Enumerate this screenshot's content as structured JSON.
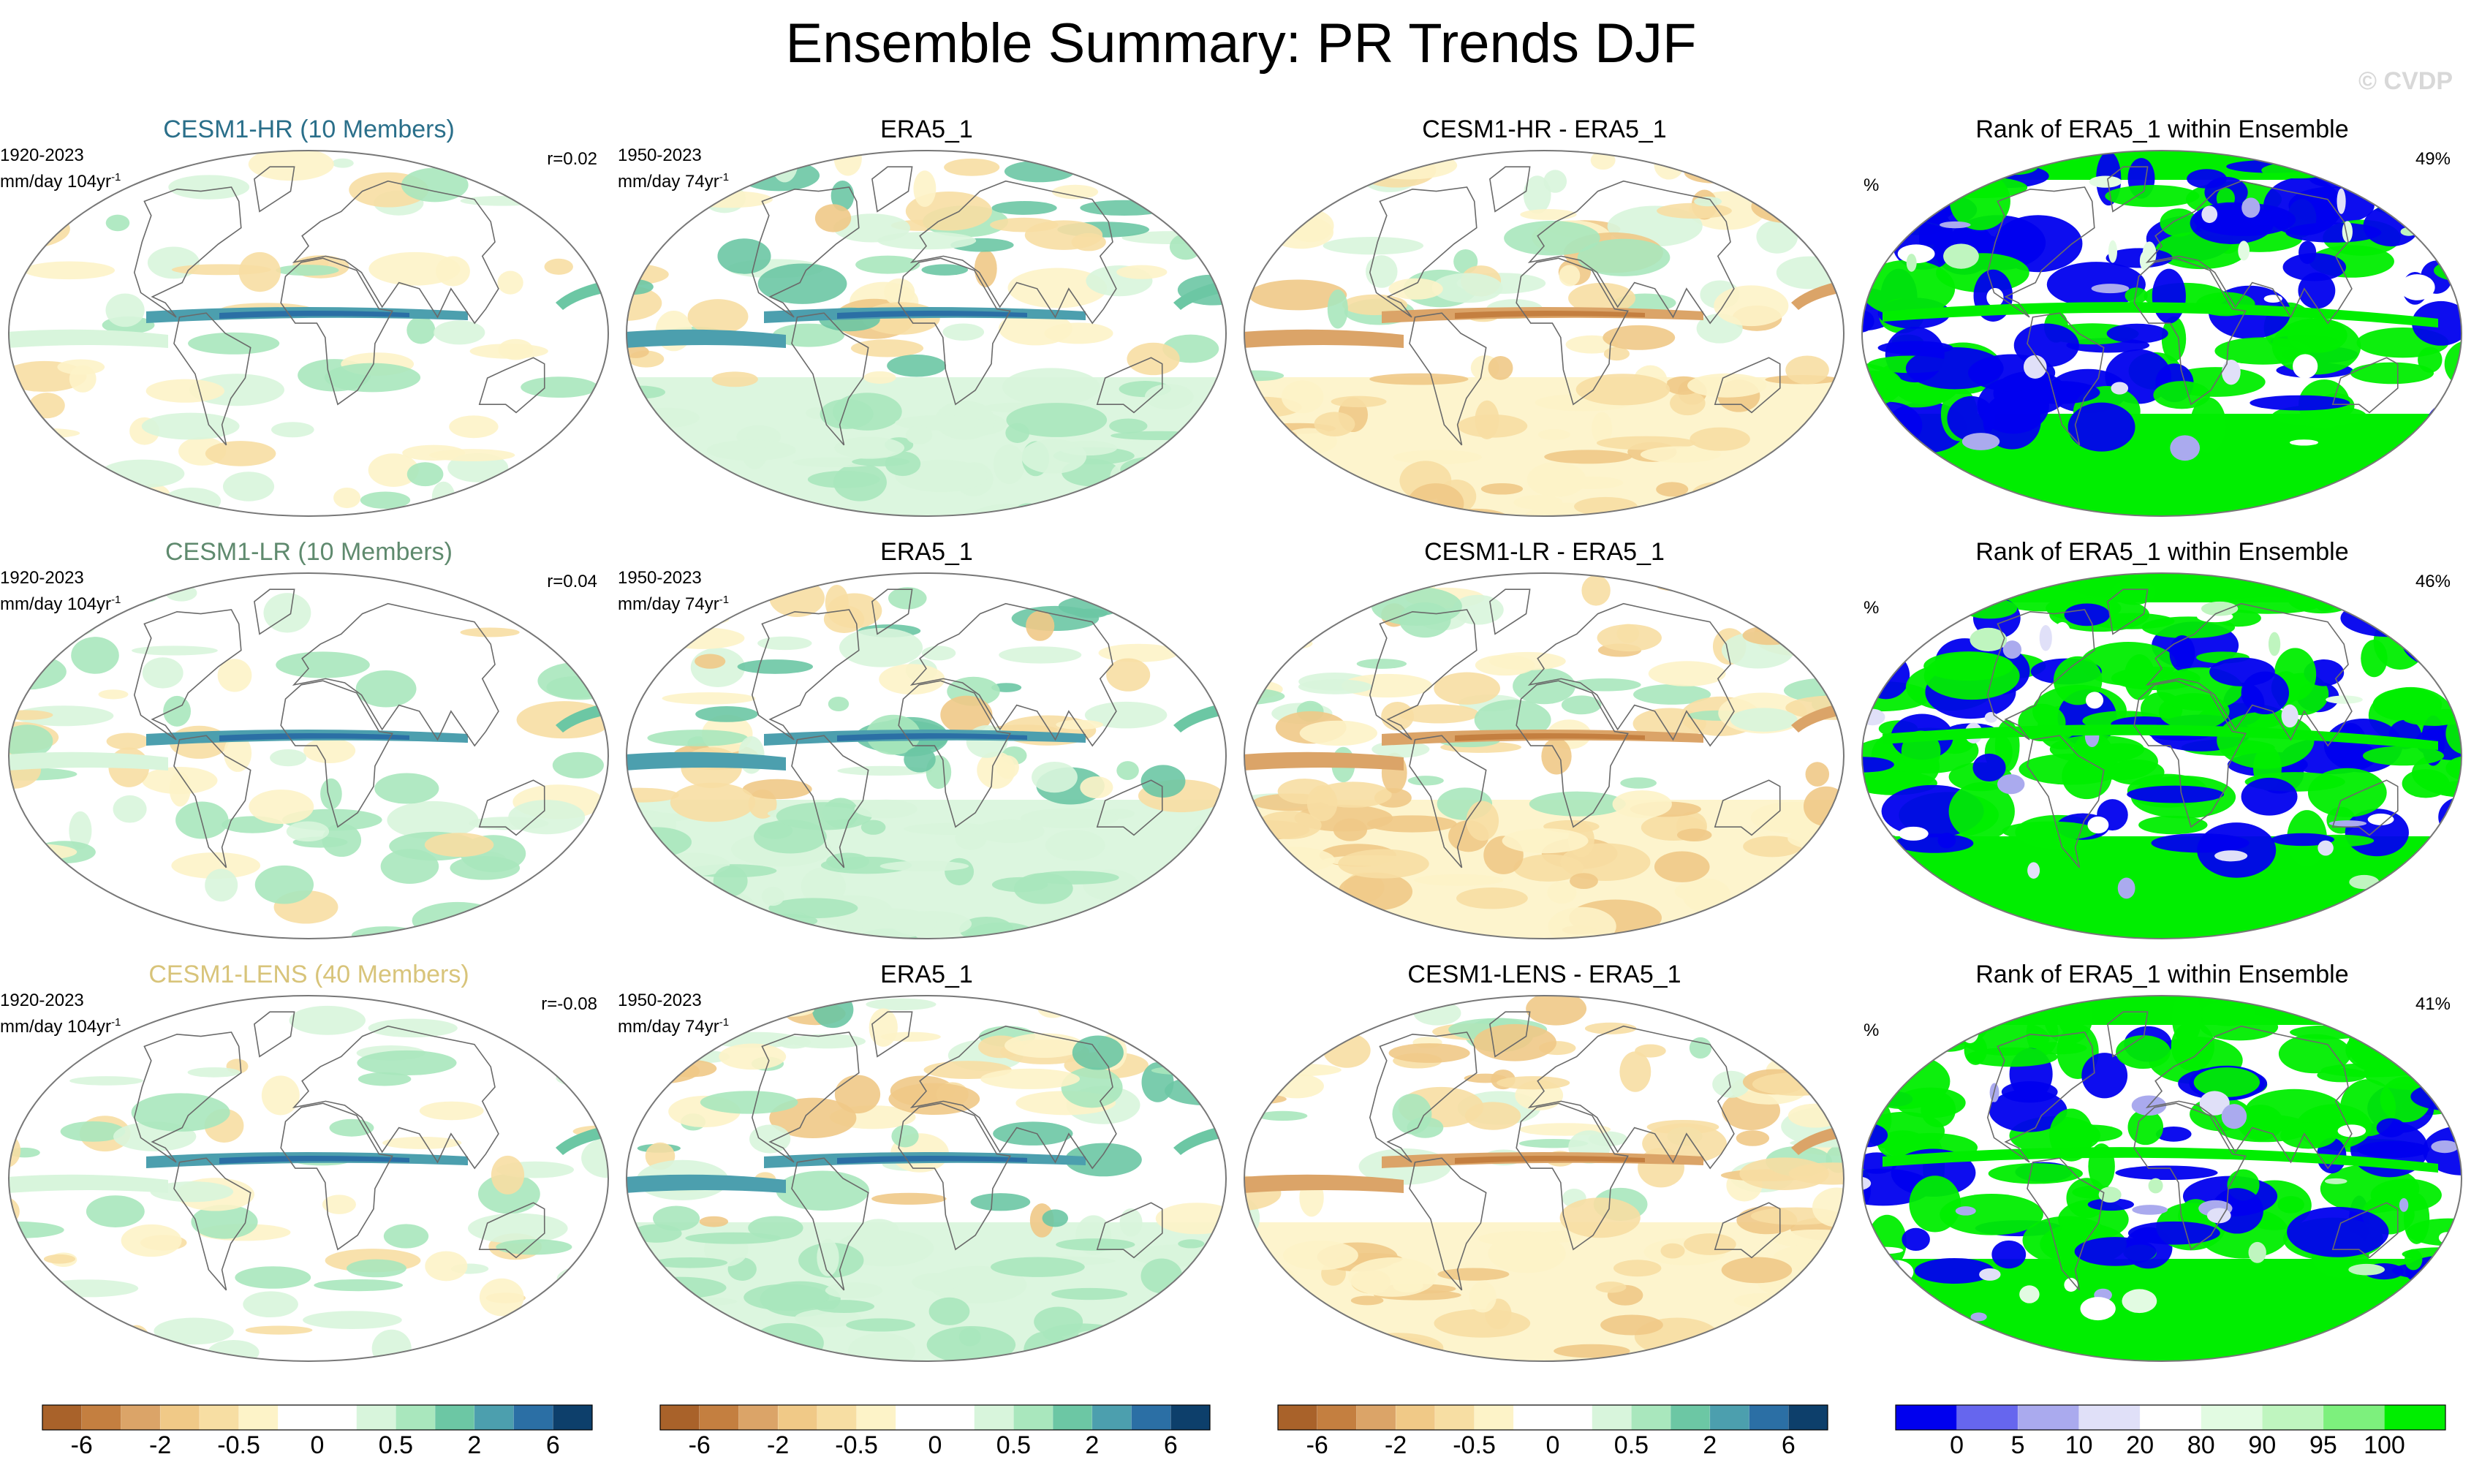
{
  "title": "Ensemble Summary: PR Trends DJF",
  "copyright": "© CVDP",
  "rows": [
    {
      "model": {
        "title": "CESM1-HR (10 Members)",
        "title_color": "#2a6f8a",
        "period": "1920-2023",
        "units": "mm/day 104yr",
        "units_exp": "-1",
        "corr": "r=0.02"
      },
      "obs": {
        "title": "ERA5_1",
        "period": "1950-2023",
        "units": "mm/day 74yr",
        "units_exp": "-1"
      },
      "diff": {
        "title": "CESM1-HR - ERA5_1"
      },
      "rank": {
        "title": "Rank of ERA5_1 within Ensemble",
        "unit": "%",
        "percent": "49%"
      }
    },
    {
      "model": {
        "title": "CESM1-LR (10 Members)",
        "title_color": "#5f8a6e",
        "period": "1920-2023",
        "units": "mm/day 104yr",
        "units_exp": "-1",
        "corr": "r=0.04"
      },
      "obs": {
        "title": "ERA5_1",
        "period": "1950-2023",
        "units": "mm/day 74yr",
        "units_exp": "-1"
      },
      "diff": {
        "title": "CESM1-LR - ERA5_1"
      },
      "rank": {
        "title": "Rank of ERA5_1 within Ensemble",
        "unit": "%",
        "percent": "46%"
      }
    },
    {
      "model": {
        "title": "CESM1-LENS (40 Members)",
        "title_color": "#d8c47a",
        "period": "1920-2023",
        "units": "mm/day 104yr",
        "units_exp": "-1",
        "corr": "r=-0.08"
      },
      "obs": {
        "title": "ERA5_1",
        "period": "1950-2023",
        "units": "mm/day 74yr",
        "units_exp": "-1"
      },
      "diff": {
        "title": "CESM1-LENS - ERA5_1"
      },
      "rank": {
        "title": "Rank of ERA5_1 within Ensemble",
        "unit": "%",
        "percent": "41%"
      }
    }
  ],
  "colorbars": {
    "trend": {
      "colors": [
        "#a9622a",
        "#c47f40",
        "#dba468",
        "#f0c987",
        "#f7dea3",
        "#fdf3c8",
        "#ffffff",
        "#ffffff",
        "#d8f5dc",
        "#a9e7bd",
        "#6cc7a4",
        "#4c9fae",
        "#2b6fa5",
        "#0d3f6b"
      ],
      "labels": [
        {
          "label": "-6",
          "pos": 1
        },
        {
          "label": "-2",
          "pos": 3
        },
        {
          "label": "-0.5",
          "pos": 5
        },
        {
          "label": "0",
          "pos": 7
        },
        {
          "label": "0.5",
          "pos": 9
        },
        {
          "label": "2",
          "pos": 11
        },
        {
          "label": "6",
          "pos": 13
        }
      ]
    },
    "rank": {
      "colors": [
        "#0000ee",
        "#6666ee",
        "#aaaaee",
        "#e0e0f8",
        "#ffffff",
        "#e2fbe2",
        "#bff5bf",
        "#7df07d",
        "#00ee00"
      ],
      "labels": [
        {
          "label": "0",
          "pos": 1
        },
        {
          "label": "5",
          "pos": 2
        },
        {
          "label": "10",
          "pos": 3
        },
        {
          "label": "20",
          "pos": 4
        },
        {
          "label": "80",
          "pos": 5
        },
        {
          "label": "90",
          "pos": 6
        },
        {
          "label": "95",
          "pos": 7
        },
        {
          "label": "100",
          "pos": 8
        }
      ]
    }
  }
}
